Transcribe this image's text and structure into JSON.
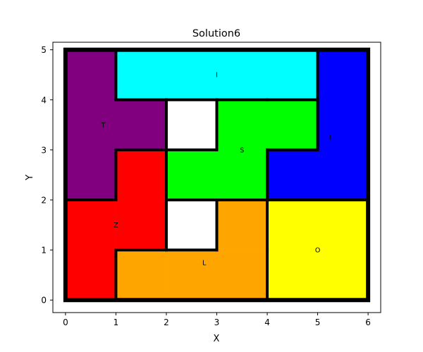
{
  "chart_data": {
    "type": "tiling",
    "title": "Solution6",
    "xlabel": "X",
    "ylabel": "Y",
    "xlim": [
      -0.25,
      6.25
    ],
    "ylim": [
      -0.25,
      5.15
    ],
    "xticks": [
      "0",
      "1",
      "2",
      "3",
      "4",
      "5",
      "6"
    ],
    "yticks": [
      "0",
      "1",
      "2",
      "3",
      "4",
      "5"
    ],
    "grid": false,
    "border_color": "#000000",
    "pieces": [
      {
        "name": "I",
        "color": "#00FFFF",
        "cells": [
          [
            1,
            4
          ],
          [
            2,
            4
          ],
          [
            3,
            4
          ],
          [
            4,
            4
          ]
        ],
        "label": {
          "text": "I",
          "x": 3.0,
          "y": 4.5
        }
      },
      {
        "name": "I",
        "color": "#0000FF",
        "cells": [
          [
            5,
            2
          ],
          [
            5,
            3
          ],
          [
            5,
            4
          ],
          [
            4,
            2
          ]
        ],
        "label": {
          "text": "I",
          "x": 5.25,
          "y": 3.25
        }
      },
      {
        "name": "T",
        "color": "#800080",
        "cells": [
          [
            0,
            2
          ],
          [
            0,
            3
          ],
          [
            0,
            4
          ],
          [
            1,
            3
          ]
        ],
        "label": {
          "text": "T",
          "x": 0.75,
          "y": 3.5
        }
      },
      {
        "name": "S",
        "color": "#00FF00",
        "cells": [
          [
            3,
            3
          ],
          [
            4,
            3
          ],
          [
            2,
            2
          ],
          [
            3,
            2
          ]
        ],
        "label": {
          "text": "S",
          "x": 3.5,
          "y": 3.0
        }
      },
      {
        "name": "Z",
        "color": "#FF0000",
        "cells": [
          [
            1,
            2
          ],
          [
            0,
            1
          ],
          [
            1,
            1
          ],
          [
            0,
            0
          ]
        ],
        "label": {
          "text": "Z",
          "x": 1.0,
          "y": 1.5
        }
      },
      {
        "name": "L",
        "color": "#FFA500",
        "cells": [
          [
            3,
            1
          ],
          [
            1,
            0
          ],
          [
            2,
            0
          ],
          [
            3,
            0
          ]
        ],
        "label": {
          "text": "L",
          "x": 2.75,
          "y": 0.75
        }
      },
      {
        "name": "O",
        "color": "#FFFF00",
        "cells": [
          [
            4,
            0
          ],
          [
            5,
            0
          ],
          [
            4,
            1
          ],
          [
            5,
            1
          ]
        ],
        "label": {
          "text": "O",
          "x": 5.0,
          "y": 1.0
        }
      }
    ],
    "empty_cells": [
      [
        2,
        3
      ],
      [
        2,
        1
      ]
    ]
  }
}
